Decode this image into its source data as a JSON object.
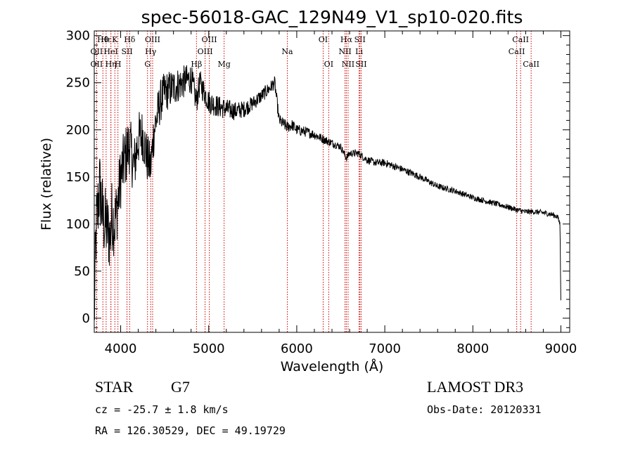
{
  "chart_data": {
    "type": "line",
    "title": "spec-56018-GAC_129N49_V1_sp10-020.fits",
    "xlabel": "Wavelength (Å)",
    "ylabel": "Flux (relative)",
    "xlim": [
      3700,
      9100
    ],
    "ylim": [
      -15,
      305
    ],
    "xticks": [
      4000,
      5000,
      6000,
      7000,
      8000,
      9000
    ],
    "yticks": [
      0,
      50,
      100,
      150,
      200,
      250,
      300
    ],
    "spectrum_anchors": {
      "x": [
        3700,
        3720,
        3760,
        3800,
        3850,
        3880,
        3900,
        3930,
        3970,
        4000,
        4050,
        4100,
        4150,
        4200,
        4250,
        4300,
        4340,
        4380,
        4450,
        4500,
        4600,
        4700,
        4800,
        4860,
        4900,
        5000,
        5100,
        5200,
        5300,
        5400,
        5500,
        5600,
        5700,
        5750,
        5800,
        5890,
        5950,
        6000,
        6100,
        6200,
        6300,
        6400,
        6500,
        6563,
        6600,
        6700,
        6800,
        6900,
        7000,
        7200,
        7400,
        7600,
        7800,
        8000,
        8200,
        8400,
        8500,
        8600,
        8700,
        8800,
        8900,
        8960,
        8990,
        9000
      ],
      "y": [
        0,
        90,
        140,
        105,
        95,
        85,
        110,
        100,
        125,
        150,
        170,
        185,
        160,
        190,
        195,
        170,
        160,
        200,
        230,
        240,
        245,
        250,
        255,
        230,
        250,
        230,
        225,
        222,
        220,
        222,
        228,
        236,
        245,
        250,
        210,
        203,
        205,
        200,
        198,
        195,
        190,
        186,
        182,
        170,
        175,
        175,
        168,
        165,
        165,
        158,
        150,
        140,
        135,
        128,
        123,
        118,
        115,
        113,
        113,
        112,
        110,
        108,
        100,
        10
      ]
    },
    "noise_amplitude": {
      "x": [
        3700,
        4000,
        4500,
        4900,
        5500,
        6000,
        6500,
        7000,
        8000,
        9000
      ],
      "y": [
        45,
        35,
        22,
        14,
        8,
        6,
        4,
        4,
        3,
        3
      ]
    },
    "line_markers": [
      {
        "label": "Hθ",
        "x": 3798,
        "row": 1
      },
      {
        "label": "OII",
        "x": 3727,
        "row": 2
      },
      {
        "label": "OII",
        "x": 3727,
        "row": 3
      },
      {
        "label": "Hε",
        "x": 3835,
        "row": 1
      },
      {
        "label": "HeI",
        "x": 3889,
        "row": 2
      },
      {
        "label": "Hη",
        "x": 3889,
        "row": 3
      },
      {
        "label": "K",
        "x": 3934,
        "row": 1
      },
      {
        "label": "SII",
        "x": 4072,
        "row": 2
      },
      {
        "label": "H",
        "x": 3969,
        "row": 3
      },
      {
        "label": "Hδ",
        "x": 4102,
        "row": 1
      },
      {
        "label": "OIII",
        "x": 4363,
        "row": 1
      },
      {
        "label": "Hγ",
        "x": 4341,
        "row": 2
      },
      {
        "label": "G",
        "x": 4305,
        "row": 3
      },
      {
        "label": "OIII",
        "x": 5007,
        "row": 1
      },
      {
        "label": "OIII",
        "x": 4959,
        "row": 2
      },
      {
        "label": "Hβ",
        "x": 4861,
        "row": 3
      },
      {
        "label": "Mg",
        "x": 5175,
        "row": 3
      },
      {
        "label": "Na",
        "x": 5893,
        "row": 2
      },
      {
        "label": "OI",
        "x": 6300,
        "row": 1
      },
      {
        "label": "OI",
        "x": 6363,
        "row": 3
      },
      {
        "label": "Hα",
        "x": 6563,
        "row": 1
      },
      {
        "label": "SII",
        "x": 6717,
        "row": 1
      },
      {
        "label": "NII",
        "x": 6548,
        "row": 2
      },
      {
        "label": "Li",
        "x": 6708,
        "row": 2
      },
      {
        "label": "NII",
        "x": 6583,
        "row": 3
      },
      {
        "label": "SII",
        "x": 6731,
        "row": 3
      },
      {
        "label": "CaII",
        "x": 8542,
        "row": 1
      },
      {
        "label": "CaII",
        "x": 8498,
        "row": 2
      },
      {
        "label": "CaII",
        "x": 8662,
        "row": 3
      }
    ]
  },
  "info": {
    "class": "STAR",
    "subclass": "G7",
    "survey": "LAMOST DR3",
    "cz": "cz = -25.7 ± 1.8 km/s",
    "obs_date": "Obs-Date: 20120331",
    "coords": "RA = 126.30529, DEC =  49.19729"
  },
  "colors": {
    "spectrum": "#000000",
    "markers": "#cc0000",
    "axes": "#000000"
  }
}
